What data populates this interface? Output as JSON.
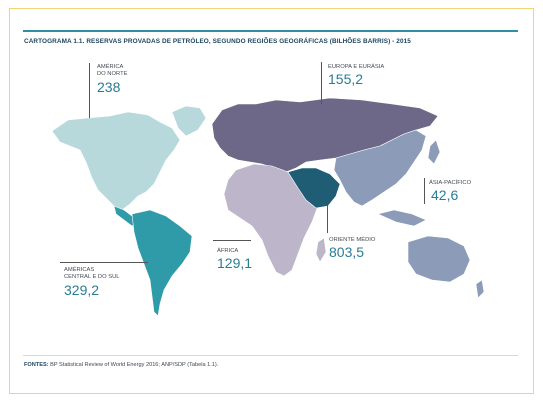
{
  "title": "CARTOGRAMA 1.1. RESERVAS PROVADAS DE PETRÓLEO, SEGUNDO REGIÕES GEOGRÁFICAS (BILHÕES BARRIS) - 2015",
  "regions": [
    {
      "id": "north-america",
      "label": "AMÉRICA DO NORTE",
      "label_lines": [
        "AMÉRICA",
        "DO NORTE"
      ],
      "value": "238",
      "color": "#b7d9dc"
    },
    {
      "id": "central-south-america",
      "label": "AMÉRICAS CENTRAL E DO SUL",
      "label_lines": [
        "AMÉRICAS",
        "CENTRAL E DO SUL"
      ],
      "value": "329,2",
      "color": "#2f9aa8"
    },
    {
      "id": "europe-eurasia",
      "label": "EUROPA E EURÁSIA",
      "label_lines": [
        "EUROPA E EURÁSIA"
      ],
      "value": "155,2",
      "color": "#6e6888"
    },
    {
      "id": "africa",
      "label": "ÁFRICA",
      "label_lines": [
        "ÁFRICA"
      ],
      "value": "129,1",
      "color": "#bdb5c9"
    },
    {
      "id": "middle-east",
      "label": "ORIENTE MÉDIO",
      "label_lines": [
        "ORIENTE MÉDIO"
      ],
      "value": "803,5",
      "color": "#1e5d74"
    },
    {
      "id": "asia-pacific",
      "label": "ÁSIA-PACÍFICO",
      "label_lines": [
        "ÁSIA-PACÍFICO"
      ],
      "value": "42,6",
      "color": "#8b9bb8"
    }
  ],
  "footer": {
    "source_label": "FONTES:",
    "source_text": " BP Statistical Review of World Energy 2016; ANP/SDP (Tabela 1.1)."
  }
}
